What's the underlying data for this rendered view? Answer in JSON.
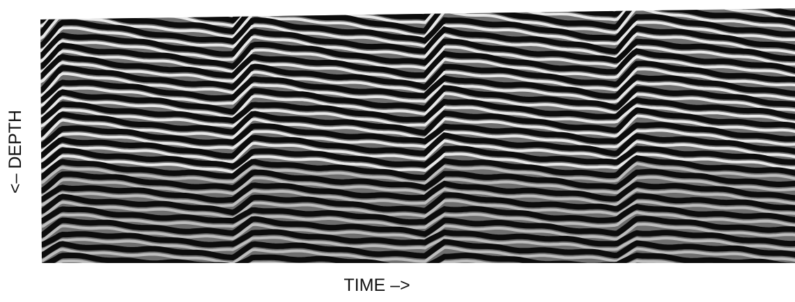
{
  "figure": {
    "x_label": "TIME –>",
    "y_label": "<– DEPTH"
  }
}
